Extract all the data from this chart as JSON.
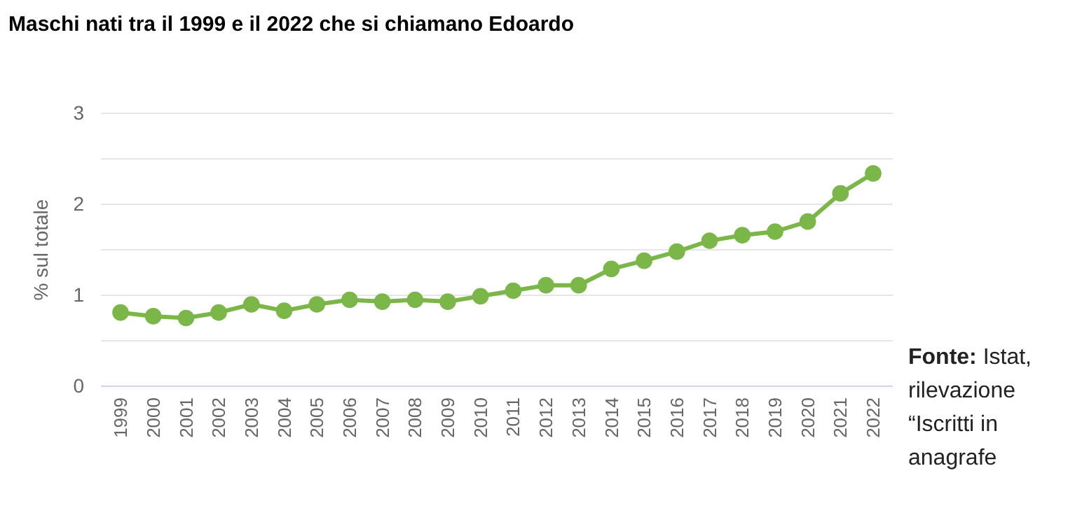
{
  "chart_data": {
    "type": "line",
    "title": "Maschi nati tra il 1999 e il 2022 che si chiamano Edoardo",
    "ylabel": "% sul totale",
    "categories": [
      "1999",
      "2000",
      "2001",
      "2002",
      "2003",
      "2004",
      "2005",
      "2006",
      "2007",
      "2008",
      "2009",
      "2010",
      "2011",
      "2012",
      "2013",
      "2014",
      "2015",
      "2016",
      "2017",
      "2018",
      "2019",
      "2020",
      "2021",
      "2022"
    ],
    "series": [
      {
        "color": "#7ab648",
        "values": [
          0.81,
          0.77,
          0.75,
          0.81,
          0.9,
          0.83,
          0.9,
          0.95,
          0.93,
          0.95,
          0.93,
          0.99,
          1.05,
          1.11,
          1.11,
          1.29,
          1.38,
          1.48,
          1.6,
          1.66,
          1.7,
          1.81,
          2.12,
          2.34
        ]
      }
    ],
    "ylim": [
      0,
      3
    ],
    "yticks": [
      0,
      {
        "value": 0.5,
        "label": null
      },
      1,
      {
        "value": 1.5,
        "label": null
      },
      2,
      {
        "value": 2.5,
        "label": null
      },
      3
    ],
    "grid": true,
    "marker": "circle",
    "line_style": "solid",
    "annotations": [
      "Fonte: Istat, rilevazione “Iscritti in anagrafe"
    ]
  }
}
